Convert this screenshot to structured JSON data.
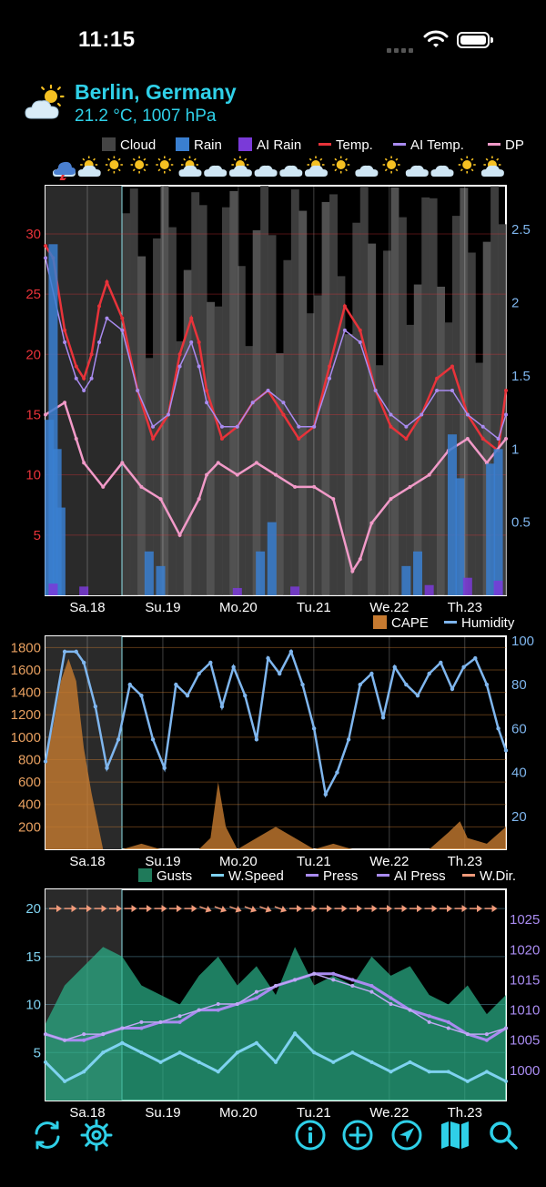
{
  "status_bar": {
    "time": "11:15"
  },
  "location": {
    "city": "Berlin, Germany",
    "current": "21.2 °C, 1007 hPa",
    "weather_icon": "partly-cloudy-icon"
  },
  "colors": {
    "accent": "#2fd0e8",
    "temp": "#e8333a",
    "ai_temp": "#a98bf0",
    "dew_point": "#f19ac8",
    "rain": "#3a7fd0",
    "ai_rain": "#7a3ad8",
    "cape": "#c67a30",
    "humidity": "#7fb6ee",
    "gusts": "#1f7a5a",
    "wind_speed": "#7fd2f0",
    "pressure": "#a98bf0",
    "wind_dir": "#f09a7a"
  },
  "forecast_icons": [
    "thunderstorm-icon",
    "cloud-sun-icon",
    "sun-icon",
    "sun-icon",
    "sun-icon",
    "cloud-sun-icon",
    "cloud-icon",
    "cloud-sun-icon",
    "cloud-icon",
    "cloud-icon",
    "cloud-sun-icon",
    "sun-icon",
    "cloud-icon",
    "sun-icon",
    "cloud-icon",
    "cloud-icon",
    "sun-icon",
    "cloud-sun-icon"
  ],
  "days": [
    "Sa.18",
    "Su.19",
    "Mo.20",
    "Tu.21",
    "We.22",
    "Th.23"
  ],
  "chart_data": [
    {
      "type": "line",
      "legend": [
        "Cloud",
        "Rain",
        "AI Rain",
        "Temp.",
        "AI Temp.",
        "DP"
      ],
      "legend_placement": "top",
      "ylim": [
        0,
        34
      ],
      "yticks": [
        "30",
        "25",
        "20",
        "15",
        "10",
        "5"
      ],
      "y2lim": [
        0,
        2.8
      ],
      "y2ticks": [
        "2.5",
        "2",
        "1.5",
        "1",
        "0.5"
      ],
      "grid": true,
      "series": [
        {
          "name": "Temp.",
          "x": [
            0,
            0.2,
            0.5,
            0.8,
            1.0,
            1.2,
            1.4,
            1.6,
            2.0,
            2.4,
            2.8,
            3.2,
            3.5,
            3.8,
            4.0,
            4.2,
            4.6,
            5.0,
            5.4,
            5.8,
            6.2,
            6.6,
            7.0,
            7.4,
            7.8,
            8.2,
            8.6,
            9.0,
            9.4,
            9.8,
            10.2,
            10.6,
            11.0,
            11.4,
            11.8,
            12.0
          ],
          "values": [
            29,
            28,
            22,
            19,
            18,
            20,
            24,
            26,
            23,
            17,
            13,
            15,
            20,
            23,
            21,
            17,
            13,
            14,
            16,
            17,
            15,
            13,
            14,
            19,
            24,
            22,
            17,
            14,
            13,
            15,
            18,
            19,
            15,
            13,
            12,
            17
          ]
        },
        {
          "name": "AI Temp.",
          "x": [
            0,
            0.5,
            0.8,
            1.0,
            1.2,
            1.4,
            1.6,
            2.0,
            2.4,
            2.8,
            3.2,
            3.5,
            3.8,
            4.0,
            4.2,
            4.6,
            5.0,
            5.4,
            5.8,
            6.2,
            6.6,
            7.0,
            7.4,
            7.8,
            8.2,
            8.6,
            9.0,
            9.4,
            9.8,
            10.2,
            10.6,
            11.0,
            11.4,
            11.8,
            12.0
          ],
          "values": [
            28,
            21,
            18,
            17,
            18,
            21,
            23,
            22,
            17,
            14,
            15,
            19,
            21,
            19,
            16,
            14,
            14,
            16,
            17,
            16,
            14,
            14,
            18,
            22,
            21,
            17,
            15,
            14,
            15,
            17,
            17,
            15,
            14,
            13,
            15
          ]
        },
        {
          "name": "DP",
          "x": [
            0,
            0.5,
            0.8,
            1.0,
            1.5,
            2.0,
            2.5,
            3.0,
            3.5,
            4.0,
            4.2,
            4.5,
            5.0,
            5.5,
            6.0,
            6.5,
            7.0,
            7.5,
            8.0,
            8.2,
            8.5,
            9.0,
            9.5,
            10.0,
            10.5,
            11.0,
            11.5,
            12.0
          ],
          "values": [
            15,
            16,
            13,
            11,
            9,
            11,
            9,
            8,
            5,
            8,
            10,
            11,
            10,
            11,
            10,
            9,
            9,
            8,
            2,
            3,
            6,
            8,
            9,
            10,
            12,
            13,
            11,
            13
          ]
        },
        {
          "name": "Rain",
          "x": [
            0.1,
            0.2,
            0.3,
            0.4,
            2.7,
            3.0,
            5.6,
            5.9,
            9.4,
            9.7,
            10.6,
            10.8,
            11.6,
            11.8
          ],
          "values": [
            1.2,
            2.4,
            1.0,
            0.6,
            0.3,
            0.2,
            0.3,
            0.5,
            0.2,
            0.3,
            1.1,
            0.8,
            0.9,
            1.0
          ]
        },
        {
          "name": "AI Rain",
          "x": [
            0.2,
            1.0,
            5.0,
            6.5,
            10.0,
            11.0,
            11.8
          ],
          "values": [
            0.08,
            0.06,
            0.05,
            0.06,
            0.07,
            0.12,
            0.1
          ]
        }
      ]
    },
    {
      "type": "line",
      "legend": [
        "CAPE",
        "Humidity"
      ],
      "legend_placement": "top-right",
      "ylim": [
        0,
        1900
      ],
      "yticks": [
        "1800",
        "1600",
        "1400",
        "1200",
        "1000",
        "800",
        "600",
        "400",
        "200"
      ],
      "y2lim": [
        5,
        102
      ],
      "y2ticks": [
        "100",
        "80",
        "60",
        "40",
        "20"
      ],
      "grid": true,
      "series": [
        {
          "name": "Humidity",
          "x": [
            0,
            0.5,
            0.8,
            1.0,
            1.3,
            1.6,
            1.9,
            2.2,
            2.5,
            2.8,
            3.1,
            3.4,
            3.7,
            4.0,
            4.3,
            4.6,
            4.9,
            5.2,
            5.5,
            5.8,
            6.1,
            6.4,
            6.7,
            7.0,
            7.3,
            7.6,
            7.9,
            8.2,
            8.5,
            8.8,
            9.1,
            9.4,
            9.7,
            10.0,
            10.3,
            10.6,
            10.9,
            11.2,
            11.5,
            11.8,
            12.0
          ],
          "values": [
            45,
            95,
            95,
            90,
            70,
            42,
            55,
            80,
            75,
            55,
            42,
            80,
            75,
            85,
            90,
            70,
            88,
            75,
            55,
            92,
            85,
            95,
            80,
            60,
            30,
            40,
            55,
            80,
            85,
            65,
            88,
            80,
            75,
            85,
            90,
            78,
            88,
            92,
            80,
            60,
            50
          ]
        },
        {
          "name": "CAPE",
          "x": [
            0,
            0.2,
            0.4,
            0.6,
            0.8,
            1.0,
            1.2,
            1.5,
            2.0,
            2.5,
            3.0,
            4.0,
            4.3,
            4.5,
            4.7,
            5.0,
            5.5,
            6.0,
            6.5,
            7.0,
            7.5,
            8.0,
            9.0,
            10.0,
            10.5,
            10.8,
            11.0,
            11.5,
            12.0
          ],
          "values": [
            800,
            1100,
            1500,
            1700,
            1500,
            900,
            500,
            0,
            0,
            50,
            0,
            0,
            100,
            600,
            200,
            0,
            100,
            200,
            100,
            0,
            50,
            0,
            0,
            0,
            150,
            250,
            100,
            50,
            200
          ]
        }
      ]
    },
    {
      "type": "line",
      "legend": [
        "Gusts",
        "W.Speed",
        "Press",
        "AI Press",
        "W.Dir."
      ],
      "legend_placement": "top",
      "ylim": [
        0,
        22
      ],
      "yticks": [
        "20",
        "15",
        "10",
        "5"
      ],
      "y2lim": [
        995,
        1030
      ],
      "y2ticks": [
        "1025",
        "1020",
        "1015",
        "1010",
        "1005",
        "1000"
      ],
      "grid": true,
      "series": [
        {
          "name": "Gusts",
          "x": [
            0,
            0.5,
            1.0,
            1.5,
            2.0,
            2.5,
            3.0,
            3.5,
            4.0,
            4.5,
            5.0,
            5.5,
            6.0,
            6.5,
            7.0,
            7.5,
            8.0,
            8.5,
            9.0,
            9.5,
            10.0,
            10.5,
            11.0,
            11.5,
            12.0
          ],
          "values": [
            8,
            12,
            14,
            16,
            15,
            12,
            11,
            10,
            13,
            15,
            12,
            14,
            11,
            16,
            12,
            13,
            12,
            15,
            13,
            14,
            11,
            10,
            12,
            9,
            11
          ]
        },
        {
          "name": "W.Speed",
          "x": [
            0,
            0.5,
            1.0,
            1.5,
            2.0,
            2.5,
            3.0,
            3.5,
            4.0,
            4.5,
            5.0,
            5.5,
            6.0,
            6.5,
            7.0,
            7.5,
            8.0,
            8.5,
            9.0,
            9.5,
            10.0,
            10.5,
            11.0,
            11.5,
            12.0
          ],
          "values": [
            4,
            2,
            3,
            5,
            6,
            5,
            4,
            5,
            4,
            3,
            5,
            6,
            4,
            7,
            5,
            4,
            5,
            4,
            3,
            4,
            3,
            3,
            2,
            3,
            2
          ]
        },
        {
          "name": "Press",
          "x": [
            0,
            0.5,
            1.0,
            1.5,
            2.0,
            2.5,
            3.0,
            3.5,
            4.0,
            4.5,
            5.0,
            5.5,
            6.0,
            6.5,
            7.0,
            7.5,
            8.0,
            8.5,
            9.0,
            9.5,
            10.0,
            10.5,
            11.0,
            11.5,
            12.0
          ],
          "values": [
            1006,
            1005,
            1005,
            1006,
            1007,
            1007,
            1008,
            1008,
            1010,
            1010,
            1011,
            1012,
            1014,
            1015,
            1016,
            1016,
            1015,
            1014,
            1012,
            1010,
            1009,
            1008,
            1006,
            1005,
            1007
          ]
        },
        {
          "name": "AI Press",
          "x": [
            0,
            0.5,
            1.0,
            1.5,
            2.0,
            2.5,
            3.0,
            3.5,
            4.0,
            4.5,
            5.0,
            5.5,
            6.0,
            6.5,
            7.0,
            7.5,
            8.0,
            8.5,
            9.0,
            9.5,
            10.0,
            10.5,
            11.0,
            11.5,
            12.0
          ],
          "values": [
            1006,
            1005,
            1006,
            1006,
            1007,
            1008,
            1008,
            1009,
            1010,
            1011,
            1011,
            1013,
            1014,
            1015,
            1016,
            1015,
            1014,
            1013,
            1011,
            1010,
            1008,
            1007,
            1006,
            1006,
            1007
          ]
        }
      ]
    }
  ],
  "bottom_bar": [
    {
      "name": "refresh-button",
      "icon": "refresh-icon"
    },
    {
      "name": "settings-button",
      "icon": "gear-icon"
    },
    {
      "name": "info-button",
      "icon": "info-icon"
    },
    {
      "name": "add-button",
      "icon": "plus-circle-icon"
    },
    {
      "name": "location-button",
      "icon": "location-arrow-icon"
    },
    {
      "name": "map-button",
      "icon": "map-icon"
    },
    {
      "name": "search-button",
      "icon": "search-icon"
    }
  ]
}
